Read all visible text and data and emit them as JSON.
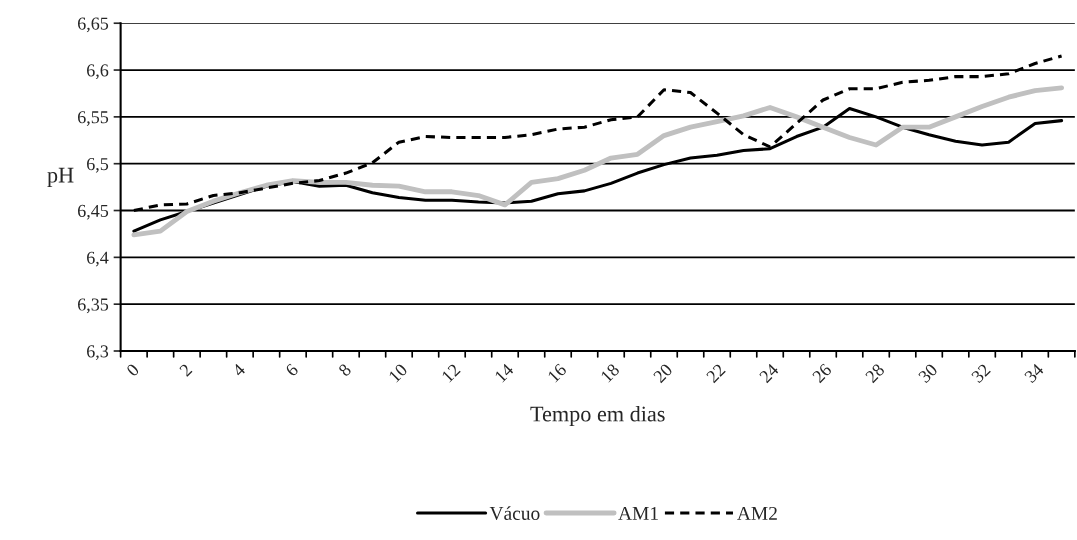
{
  "chart_data": {
    "type": "line",
    "xlabel": "Tempo em dias",
    "ylabel": "pH",
    "categories": [
      "0",
      null,
      "2",
      null,
      "4",
      null,
      "6",
      null,
      "8",
      null,
      "10",
      null,
      "12",
      null,
      "14",
      null,
      "16",
      null,
      "18",
      null,
      "20",
      null,
      "22",
      null,
      "24",
      null,
      "26",
      null,
      "28",
      null,
      "30",
      null,
      "32",
      null,
      "34",
      null
    ],
    "series": [
      {
        "name": "Vácuo",
        "color": "#000000",
        "line_style": "solid",
        "values": [
          6.428,
          6.44,
          6.449,
          6.458,
          6.467,
          6.476,
          6.481,
          6.476,
          6.477,
          6.469,
          6.464,
          6.461,
          6.461,
          6.459,
          6.458,
          6.46,
          6.468,
          6.471,
          6.479,
          6.49,
          6.499,
          6.506,
          6.509,
          6.514,
          6.516,
          6.529,
          6.539,
          6.559,
          6.55,
          6.539,
          6.531,
          6.524,
          6.52,
          6.523,
          6.543,
          6.546
        ]
      },
      {
        "name": "AM1",
        "color": "#c0c0c0",
        "line_style": "solid",
        "values": [
          6.424,
          6.428,
          6.449,
          6.46,
          6.469,
          6.477,
          6.482,
          6.48,
          6.48,
          6.477,
          6.476,
          6.47,
          6.47,
          6.466,
          6.456,
          6.48,
          6.484,
          6.493,
          6.506,
          6.51,
          6.53,
          6.539,
          6.545,
          6.551,
          6.56,
          6.55,
          6.539,
          6.528,
          6.52,
          6.539,
          6.539,
          6.55,
          6.561,
          6.571,
          6.578,
          6.581
        ]
      },
      {
        "name": "AM2",
        "color": "#000000",
        "line_style": "dashed",
        "values": [
          6.45,
          6.456,
          6.457,
          6.466,
          6.469,
          6.474,
          6.479,
          6.482,
          6.49,
          6.501,
          6.523,
          6.529,
          6.528,
          6.528,
          6.528,
          6.531,
          6.537,
          6.539,
          6.547,
          6.55,
          6.579,
          6.576,
          6.554,
          6.531,
          6.518,
          6.543,
          6.568,
          6.58,
          6.58,
          6.587,
          6.589,
          6.593,
          6.593,
          6.596,
          6.607,
          6.615
        ]
      }
    ],
    "ylim": [
      6.3,
      6.65
    ],
    "yticks": [
      {
        "value": 6.3,
        "label": "6,3"
      },
      {
        "value": 6.35,
        "label": "6,35"
      },
      {
        "value": 6.4,
        "label": "6,4"
      },
      {
        "value": 6.45,
        "label": "6,45"
      },
      {
        "value": 6.5,
        "label": "6,5"
      },
      {
        "value": 6.55,
        "label": "6,55"
      },
      {
        "value": 6.6,
        "label": "6,6"
      },
      {
        "value": 6.65,
        "label": "6,65"
      }
    ],
    "grid": "y",
    "legend": "bottom",
    "marker": "none"
  }
}
